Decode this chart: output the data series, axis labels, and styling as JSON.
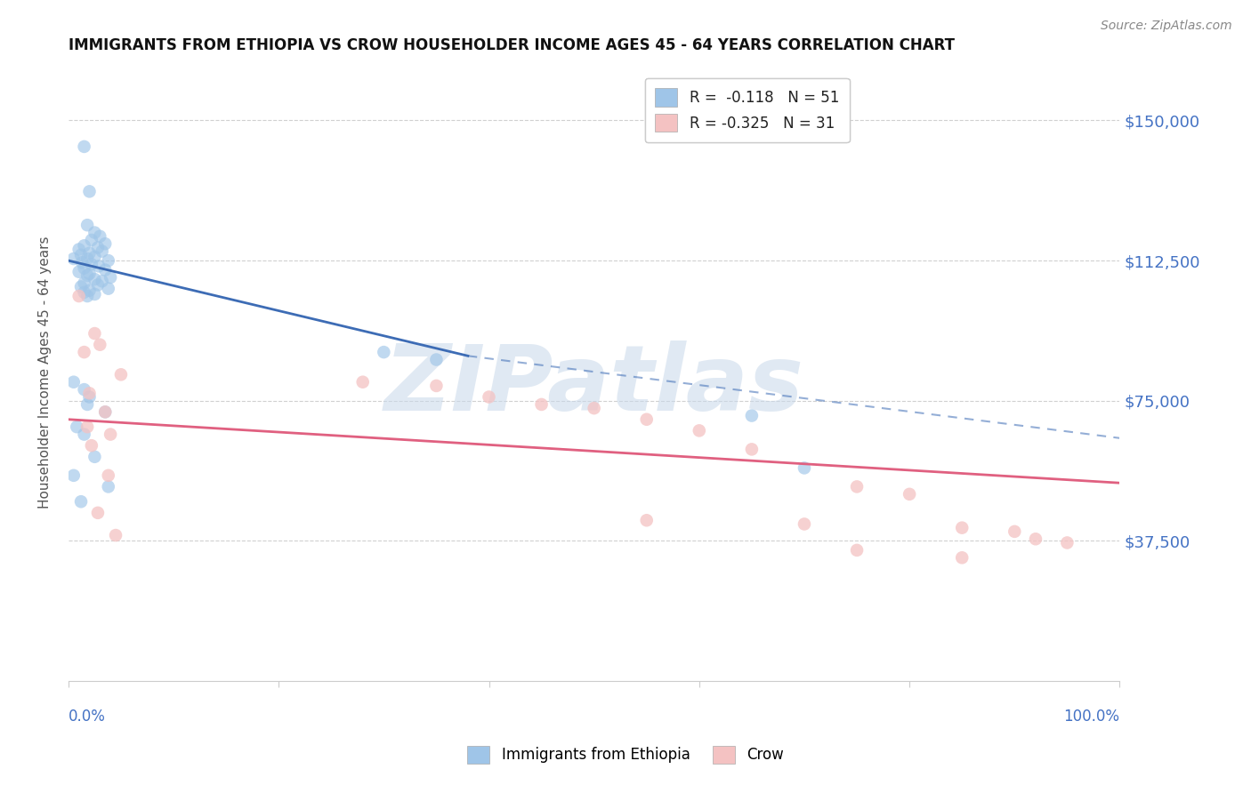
{
  "title": "IMMIGRANTS FROM ETHIOPIA VS CROW HOUSEHOLDER INCOME AGES 45 - 64 YEARS CORRELATION CHART",
  "source": "Source: ZipAtlas.com",
  "ylabel": "Householder Income Ages 45 - 64 years",
  "xlim": [
    0,
    100
  ],
  "ylim": [
    0,
    165000
  ],
  "yticks": [
    0,
    37500,
    75000,
    112500,
    150000
  ],
  "ytick_labels": [
    "",
    "$37,500",
    "$75,000",
    "$112,500",
    "$150,000"
  ],
  "legend_entry1": "R =  -0.118   N = 51",
  "legend_entry2": "R = -0.325   N = 31",
  "legend_label1": "Immigrants from Ethiopia",
  "legend_label2": "Crow",
  "axis_label_color": "#4472c4",
  "blue_color": "#9fc5e8",
  "pink_color": "#f4c2c2",
  "blue_line_color": "#3d6cb5",
  "pink_line_color": "#e06080",
  "watermark": "ZIPatlas",
  "watermark_color": "#c8d8ea",
  "blue_scatter": [
    [
      1.5,
      143000
    ],
    [
      2.0,
      131000
    ],
    [
      1.8,
      122000
    ],
    [
      2.5,
      120000
    ],
    [
      3.0,
      119000
    ],
    [
      2.2,
      118000
    ],
    [
      3.5,
      117000
    ],
    [
      1.5,
      116500
    ],
    [
      2.8,
      116000
    ],
    [
      1.0,
      115500
    ],
    [
      3.2,
      115000
    ],
    [
      2.0,
      114500
    ],
    [
      1.2,
      114000
    ],
    [
      2.5,
      113500
    ],
    [
      1.8,
      113000
    ],
    [
      0.5,
      113000
    ],
    [
      3.8,
      112500
    ],
    [
      1.3,
      112000
    ],
    [
      2.2,
      111500
    ],
    [
      2.9,
      111000
    ],
    [
      1.5,
      110500
    ],
    [
      3.5,
      110000
    ],
    [
      1.0,
      109500
    ],
    [
      2.0,
      109000
    ],
    [
      1.8,
      108500
    ],
    [
      4.0,
      108000
    ],
    [
      2.5,
      107500
    ],
    [
      3.2,
      107000
    ],
    [
      1.5,
      106500
    ],
    [
      2.8,
      106000
    ],
    [
      1.2,
      105500
    ],
    [
      3.8,
      105000
    ],
    [
      2.0,
      104500
    ],
    [
      1.5,
      104000
    ],
    [
      2.5,
      103500
    ],
    [
      1.8,
      103000
    ],
    [
      30.0,
      88000
    ],
    [
      35.0,
      86000
    ],
    [
      0.5,
      80000
    ],
    [
      1.5,
      78000
    ],
    [
      2.0,
      76000
    ],
    [
      1.8,
      74000
    ],
    [
      3.5,
      72000
    ],
    [
      65.0,
      71000
    ],
    [
      0.8,
      68000
    ],
    [
      1.5,
      66000
    ],
    [
      2.5,
      60000
    ],
    [
      70.0,
      57000
    ],
    [
      0.5,
      55000
    ],
    [
      3.8,
      52000
    ],
    [
      1.2,
      48000
    ]
  ],
  "pink_scatter": [
    [
      1.0,
      103000
    ],
    [
      2.5,
      93000
    ],
    [
      3.0,
      90000
    ],
    [
      1.5,
      88000
    ],
    [
      5.0,
      82000
    ],
    [
      28.0,
      80000
    ],
    [
      35.0,
      79000
    ],
    [
      2.0,
      77000
    ],
    [
      40.0,
      76000
    ],
    [
      45.0,
      74000
    ],
    [
      50.0,
      73000
    ],
    [
      3.5,
      72000
    ],
    [
      55.0,
      70000
    ],
    [
      1.8,
      68000
    ],
    [
      60.0,
      67000
    ],
    [
      4.0,
      66000
    ],
    [
      2.2,
      63000
    ],
    [
      65.0,
      62000
    ],
    [
      3.8,
      55000
    ],
    [
      75.0,
      52000
    ],
    [
      80.0,
      50000
    ],
    [
      2.8,
      45000
    ],
    [
      55.0,
      43000
    ],
    [
      70.0,
      42000
    ],
    [
      85.0,
      41000
    ],
    [
      90.0,
      40000
    ],
    [
      4.5,
      39000
    ],
    [
      92.0,
      38000
    ],
    [
      95.0,
      37000
    ],
    [
      75.0,
      35000
    ],
    [
      85.0,
      33000
    ]
  ],
  "blue_solid_line": [
    [
      0,
      112500
    ],
    [
      38,
      87000
    ]
  ],
  "blue_dashed_line": [
    [
      38,
      87000
    ],
    [
      100,
      65000
    ]
  ],
  "pink_line": [
    [
      0,
      70000
    ],
    [
      100,
      53000
    ]
  ]
}
